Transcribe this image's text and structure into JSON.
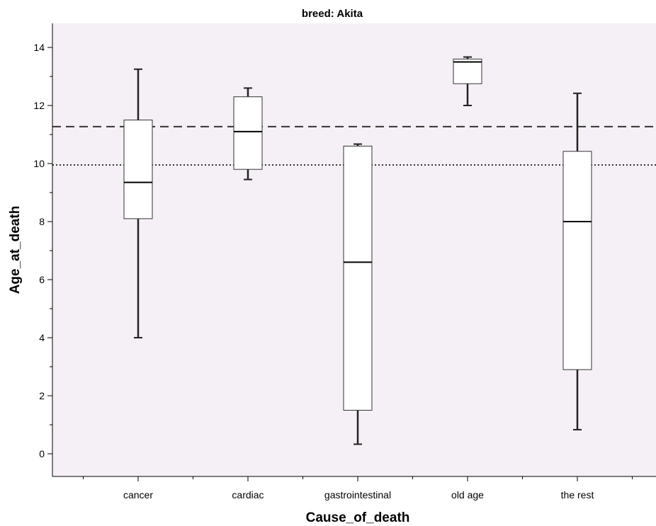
{
  "chart_data": {
    "type": "boxplot",
    "title": "breed: Akita",
    "xlabel": "Cause_of_death",
    "ylabel": "Age_at_death",
    "ylim": [
      -0.8,
      14.8
    ],
    "yticks": [
      0,
      2,
      4,
      6,
      8,
      10,
      12,
      14
    ],
    "categories": [
      "cancer",
      "cardiac",
      "gastrointestinal",
      "old age",
      "the rest"
    ],
    "boxes": [
      {
        "category": "cancer",
        "whisker_low": 4.0,
        "q1": 8.1,
        "median": 9.35,
        "q3": 11.5,
        "whisker_high": 13.25
      },
      {
        "category": "cardiac",
        "whisker_low": 9.45,
        "q1": 9.8,
        "median": 11.1,
        "q3": 12.3,
        "whisker_high": 12.6
      },
      {
        "category": "gastrointestinal",
        "whisker_low": 0.33,
        "q1": 1.5,
        "median": 6.6,
        "q3": 10.6,
        "whisker_high": 10.67
      },
      {
        "category": "old age",
        "whisker_low": 12.0,
        "q1": 12.75,
        "median": 13.5,
        "q3": 13.6,
        "whisker_high": 13.67
      },
      {
        "category": "the rest",
        "whisker_low": 0.83,
        "q1": 2.9,
        "median": 8.0,
        "q3": 10.42,
        "whisker_high": 12.42
      }
    ],
    "reference_lines": [
      {
        "style": "dashed",
        "value": 11.27
      },
      {
        "style": "dotted",
        "value": 9.95
      }
    ],
    "background_color": "#f5f0f5",
    "grid": false,
    "legend": "none"
  }
}
